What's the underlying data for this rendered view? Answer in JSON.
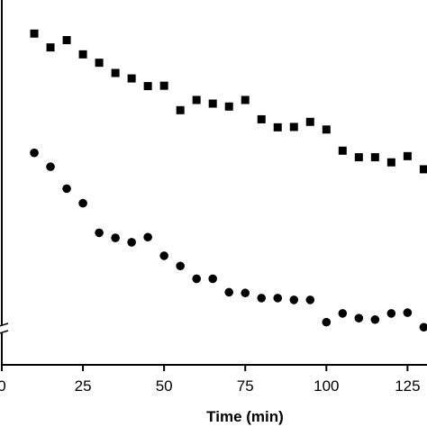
{
  "chart_data": {
    "type": "scatter",
    "xlabel": "Time (min)",
    "ylabel": "",
    "title": "",
    "xlim": [
      0,
      131
    ],
    "ylim": [
      0,
      100
    ],
    "x_ticks": [
      0,
      25,
      50,
      75,
      100,
      125
    ],
    "x_tick_labels": [
      "0",
      "25",
      "50",
      "75",
      "100",
      "125"
    ],
    "y_axis_break": true,
    "grid": false,
    "legend": "none",
    "series": [
      {
        "marker": "square",
        "color": "#000000",
        "points": [
          [
            10,
            90.8
          ],
          [
            15,
            87.0
          ],
          [
            20,
            89.0
          ],
          [
            25,
            85.1
          ],
          [
            30,
            82.8
          ],
          [
            35,
            80.0
          ],
          [
            40,
            78.5
          ],
          [
            45,
            76.4
          ],
          [
            50,
            76.5
          ],
          [
            55,
            69.8
          ],
          [
            60,
            72.6
          ],
          [
            65,
            71.6
          ],
          [
            70,
            70.8
          ],
          [
            75,
            72.6
          ],
          [
            80,
            67.3
          ],
          [
            85,
            65.1
          ],
          [
            90,
            65.2
          ],
          [
            95,
            66.6
          ],
          [
            100,
            64.5
          ],
          [
            105,
            58.7
          ],
          [
            110,
            56.9
          ],
          [
            115,
            56.9
          ],
          [
            120,
            55.5
          ],
          [
            125,
            57.2
          ],
          [
            130,
            53.6
          ]
        ]
      },
      {
        "marker": "circle",
        "color": "#000000",
        "points": [
          [
            10,
            58.1
          ],
          [
            15,
            54.3
          ],
          [
            20,
            48.3
          ],
          [
            25,
            44.3
          ],
          [
            30,
            36.2
          ],
          [
            35,
            34.8
          ],
          [
            40,
            33.6
          ],
          [
            45,
            35.0
          ],
          [
            50,
            29.9
          ],
          [
            55,
            27.1
          ],
          [
            60,
            23.6
          ],
          [
            65,
            23.6
          ],
          [
            70,
            19.9
          ],
          [
            75,
            19.7
          ],
          [
            80,
            18.3
          ],
          [
            85,
            18.3
          ],
          [
            90,
            17.8
          ],
          [
            95,
            17.8
          ],
          [
            100,
            11.7
          ],
          [
            105,
            14.1
          ],
          [
            110,
            12.8
          ],
          [
            115,
            12.4
          ],
          [
            120,
            14.1
          ],
          [
            125,
            14.3
          ],
          [
            130,
            10.3
          ]
        ]
      }
    ]
  }
}
